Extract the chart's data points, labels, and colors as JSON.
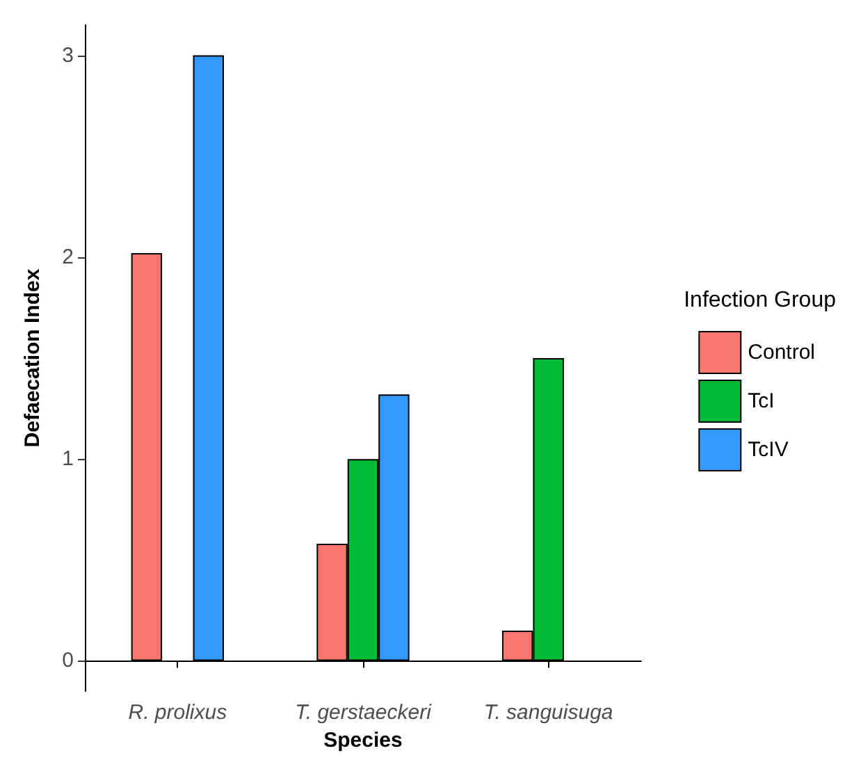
{
  "chart_data": {
    "type": "bar",
    "xlabel": "Species",
    "ylabel": "Defaecation Index",
    "legend_title": "Infection Group",
    "categories": [
      "R. prolixus",
      "T. gerstaeckeri",
      "T. sanguisuga"
    ],
    "series": [
      {
        "name": "Control",
        "color": "#f8766d",
        "values": [
          2.02,
          0.58,
          0.15
        ]
      },
      {
        "name": "TcI",
        "color": "#00ba38",
        "values": [
          null,
          1.0,
          1.5
        ]
      },
      {
        "name": "TcIV",
        "color": "#3399ff",
        "values": [
          3.0,
          1.32,
          null
        ]
      }
    ],
    "ylim": [
      -0.15,
      3.15
    ],
    "yticks": [
      0,
      1,
      2,
      3
    ],
    "grid": false,
    "legend": "right"
  }
}
